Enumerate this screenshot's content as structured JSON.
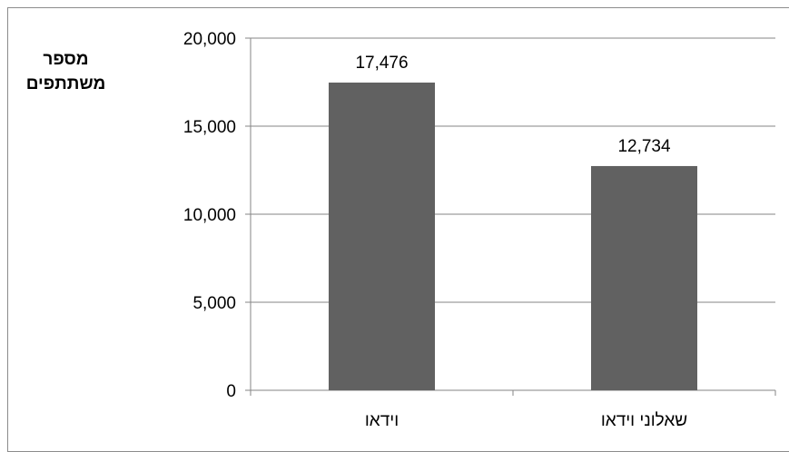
{
  "chart_data": {
    "type": "bar",
    "categories": [
      "וידאו",
      "שאלוני וידאו"
    ],
    "values": [
      17476,
      12734
    ],
    "data_labels": [
      "17,476",
      "12,734"
    ],
    "title": "",
    "xlabel": "",
    "ylabel_lines": [
      "מספר",
      "משתתפים"
    ],
    "ylim": [
      0,
      20000
    ],
    "yticks": [
      0,
      5000,
      10000,
      15000,
      20000
    ],
    "ytick_labels": [
      "0",
      "5,000",
      "10,000",
      "15,000",
      "20,000"
    ],
    "grid": true,
    "bar_color": "#616161",
    "grid_color": "#868686"
  }
}
